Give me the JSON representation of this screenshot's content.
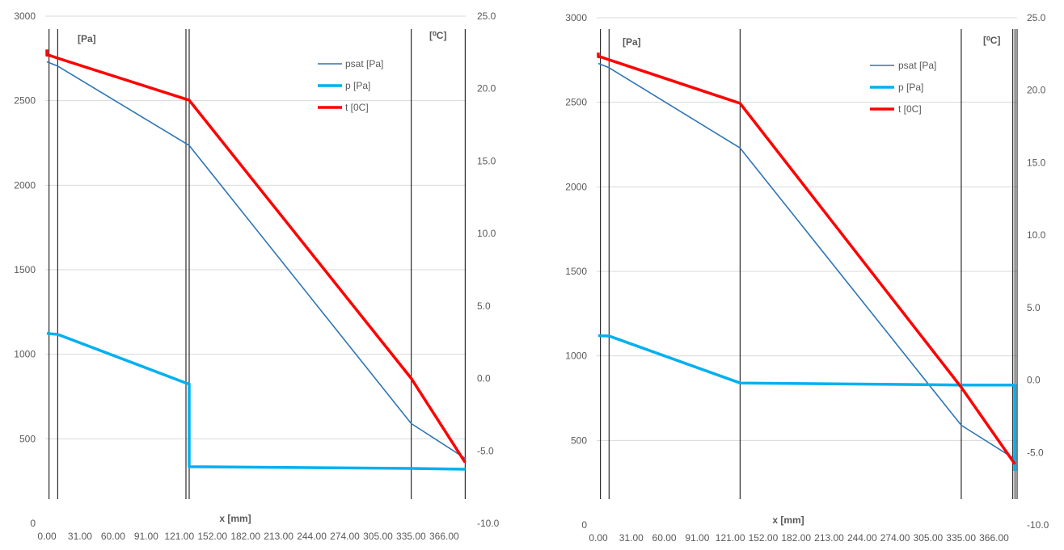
{
  "chart_data": [
    {
      "type": "line",
      "title": "",
      "xlabel": "x [mm]",
      "ylabel_left": "[Pa]",
      "ylabel_right": "[⁰C]",
      "x_tick_labels": [
        "0.00",
        "31.00",
        "60.00",
        "91.00",
        "121.00",
        "152.00",
        "182.00",
        "213.00",
        "244.00",
        "274.00",
        "305.00",
        "335.00",
        "366.00"
      ],
      "x_range": [
        0,
        390
      ],
      "ylim_left": [
        0,
        3000
      ],
      "left_ticks": [
        "3000",
        "2500",
        "2000",
        "1500",
        "1000",
        "500",
        "0"
      ],
      "ylim_right": [
        -10,
        25
      ],
      "right_ticks": [
        "25.0",
        "20.0",
        "15.0",
        "10.0",
        "5.0",
        "0.0",
        "-5.0",
        "-10.0"
      ],
      "grid": "horizontal",
      "legend_position": "top-right",
      "layer_boundaries_x": [
        2,
        10,
        129,
        132,
        338,
        388
      ],
      "series": [
        {
          "name": "psat [Pa]",
          "axis": "left",
          "color": "#2e75b6",
          "width": "thin",
          "x": [
            0,
            2,
            10,
            132,
            338,
            388
          ],
          "y": [
            2730,
            2725,
            2705,
            2235,
            590,
            385
          ]
        },
        {
          "name": "p [Pa]",
          "axis": "left",
          "color": "#00b0f0",
          "width": "thick",
          "x": [
            0,
            2,
            10,
            129,
            132,
            132,
            338,
            388
          ],
          "y": [
            1125,
            1122,
            1118,
            830,
            825,
            335,
            325,
            320
          ]
        },
        {
          "name": "t [0C]",
          "axis": "right",
          "color": "#ff0000",
          "width": "thick",
          "x": [
            0,
            0,
            2,
            10,
            132,
            338,
            388
          ],
          "y": [
            22.7,
            22.3,
            22.3,
            22.1,
            19.2,
            0.0,
            -5.8
          ]
        }
      ]
    },
    {
      "type": "line",
      "title": "",
      "xlabel": "x [mm]",
      "ylabel_left": "[Pa]",
      "ylabel_right": "[⁰C]",
      "x_tick_labels": [
        "0.00",
        "31.00",
        "60.00",
        "91.00",
        "121.00",
        "152.00",
        "182.00",
        "213.00",
        "244.00",
        "274.00",
        "305.00",
        "335.00",
        "366.00"
      ],
      "x_range": [
        0,
        390
      ],
      "ylim_left": [
        0,
        3000
      ],
      "left_ticks": [
        "3000",
        "2500",
        "2000",
        "1500",
        "1000",
        "500",
        "0"
      ],
      "ylim_right": [
        -10,
        25
      ],
      "right_ticks": [
        "25.0",
        "20.0",
        "15.0",
        "10.0",
        "5.0",
        "0.0",
        "-5.0",
        "-10.0"
      ],
      "grid": "horizontal",
      "legend_position": "top-right",
      "layer_boundaries_x": [
        2,
        10,
        132,
        338,
        386,
        388,
        390
      ],
      "series": [
        {
          "name": "psat [Pa]",
          "axis": "left",
          "color": "#2e75b6",
          "width": "thin",
          "x": [
            0,
            2,
            10,
            132,
            338,
            388
          ],
          "y": [
            2730,
            2725,
            2705,
            2230,
            590,
            390
          ]
        },
        {
          "name": "p [Pa]",
          "axis": "left",
          "color": "#00b0f0",
          "width": "thick",
          "x": [
            0,
            2,
            10,
            132,
            338,
            388,
            388
          ],
          "y": [
            1120,
            1119,
            1118,
            840,
            828,
            828,
            320
          ]
        },
        {
          "name": "t [0C]",
          "axis": "right",
          "color": "#ff0000",
          "width": "thick",
          "x": [
            0,
            0,
            2,
            10,
            132,
            338,
            388
          ],
          "y": [
            22.6,
            22.3,
            22.3,
            22.1,
            19.1,
            -0.5,
            -5.8
          ]
        }
      ]
    }
  ]
}
